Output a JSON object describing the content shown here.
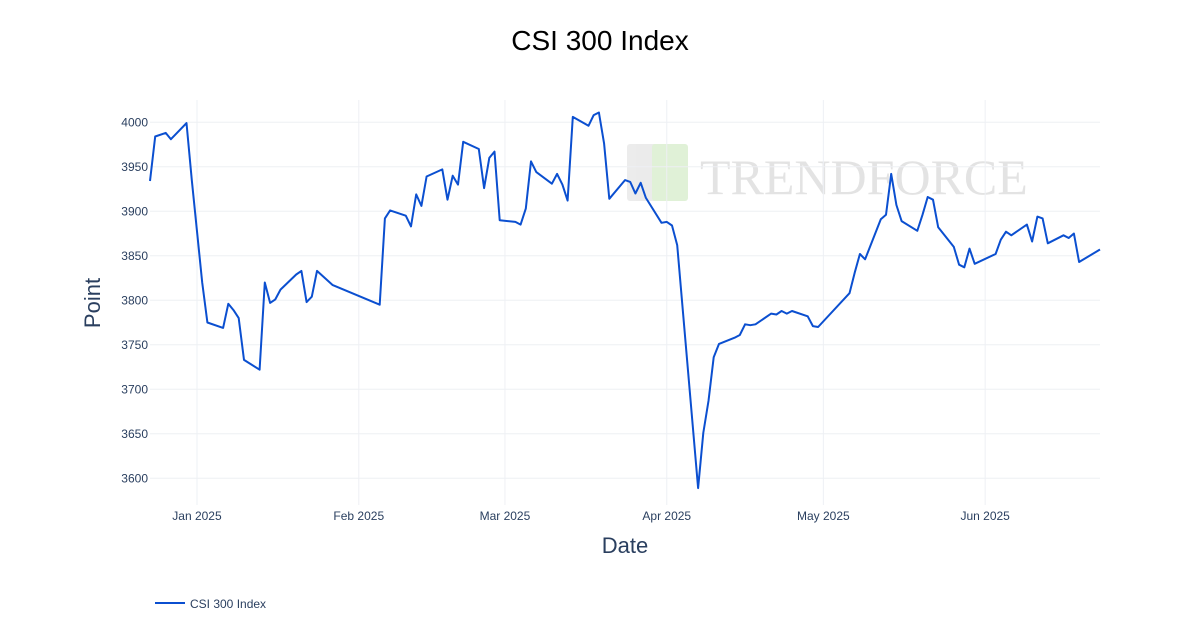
{
  "chart_data": {
    "type": "line",
    "title": "CSI 300 Index",
    "xlabel": "Date",
    "ylabel": "Point",
    "xlim": [
      "2024-12-23",
      "2025-06-23"
    ],
    "ylim": [
      3570,
      4025
    ],
    "grid": true,
    "legend_position": "bottom-left",
    "colors": {
      "title": "#1e8a4a",
      "line": "#0b4fd0",
      "grid": "#eef0f4"
    },
    "x_ticks": [
      {
        "date": "2025-01-01",
        "label": "Jan 2025"
      },
      {
        "date": "2025-02-01",
        "label": "Feb 2025"
      },
      {
        "date": "2025-03-01",
        "label": "Mar 2025"
      },
      {
        "date": "2025-04-01",
        "label": "Apr 2025"
      },
      {
        "date": "2025-05-01",
        "label": "May 2025"
      },
      {
        "date": "2025-06-01",
        "label": "Jun 2025"
      }
    ],
    "y_ticks": [
      3600,
      3650,
      3700,
      3750,
      3800,
      3850,
      3900,
      3950,
      4000
    ],
    "series": [
      {
        "name": "CSI 300 Index",
        "color": "#0b4fd0",
        "points": [
          [
            "2024-12-23",
            3934
          ],
          [
            "2024-12-24",
            3984
          ],
          [
            "2024-12-26",
            3988
          ],
          [
            "2024-12-27",
            3981
          ],
          [
            "2024-12-30",
            3999
          ],
          [
            "2024-12-31",
            3935
          ],
          [
            "2025-01-02",
            3820
          ],
          [
            "2025-01-03",
            3775
          ],
          [
            "2025-01-06",
            3769
          ],
          [
            "2025-01-07",
            3796
          ],
          [
            "2025-01-08",
            3789
          ],
          [
            "2025-01-09",
            3780
          ],
          [
            "2025-01-10",
            3733
          ],
          [
            "2025-01-13",
            3722
          ],
          [
            "2025-01-14",
            3820
          ],
          [
            "2025-01-15",
            3797
          ],
          [
            "2025-01-16",
            3801
          ],
          [
            "2025-01-17",
            3812
          ],
          [
            "2025-01-20",
            3829
          ],
          [
            "2025-01-21",
            3833
          ],
          [
            "2025-01-22",
            3798
          ],
          [
            "2025-01-23",
            3804
          ],
          [
            "2025-01-24",
            3833
          ],
          [
            "2025-01-27",
            3817
          ],
          [
            "2025-02-05",
            3795
          ],
          [
            "2025-02-06",
            3892
          ],
          [
            "2025-02-07",
            3901
          ],
          [
            "2025-02-10",
            3895
          ],
          [
            "2025-02-11",
            3883
          ],
          [
            "2025-02-12",
            3919
          ],
          [
            "2025-02-13",
            3906
          ],
          [
            "2025-02-14",
            3939
          ],
          [
            "2025-02-17",
            3947
          ],
          [
            "2025-02-18",
            3913
          ],
          [
            "2025-02-19",
            3940
          ],
          [
            "2025-02-20",
            3930
          ],
          [
            "2025-02-21",
            3978
          ],
          [
            "2025-02-24",
            3970
          ],
          [
            "2025-02-25",
            3926
          ],
          [
            "2025-02-26",
            3960
          ],
          [
            "2025-02-27",
            3967
          ],
          [
            "2025-02-28",
            3890
          ],
          [
            "2025-03-03",
            3888
          ],
          [
            "2025-03-04",
            3885
          ],
          [
            "2025-03-05",
            3903
          ],
          [
            "2025-03-06",
            3956
          ],
          [
            "2025-03-07",
            3944
          ],
          [
            "2025-03-10",
            3931
          ],
          [
            "2025-03-11",
            3942
          ],
          [
            "2025-03-12",
            3930
          ],
          [
            "2025-03-13",
            3912
          ],
          [
            "2025-03-14",
            4006
          ],
          [
            "2025-03-17",
            3996
          ],
          [
            "2025-03-18",
            4008
          ],
          [
            "2025-03-19",
            4011
          ],
          [
            "2025-03-20",
            3976
          ],
          [
            "2025-03-21",
            3914
          ],
          [
            "2025-03-24",
            3935
          ],
          [
            "2025-03-25",
            3933
          ],
          [
            "2025-03-26",
            3920
          ],
          [
            "2025-03-27",
            3932
          ],
          [
            "2025-03-28",
            3915
          ],
          [
            "2025-03-31",
            3887
          ],
          [
            "2025-04-01",
            3888
          ],
          [
            "2025-04-02",
            3884
          ],
          [
            "2025-04-03",
            3862
          ],
          [
            "2025-04-07",
            3589
          ],
          [
            "2025-04-08",
            3651
          ],
          [
            "2025-04-09",
            3687
          ],
          [
            "2025-04-10",
            3736
          ],
          [
            "2025-04-11",
            3751
          ],
          [
            "2025-04-14",
            3758
          ],
          [
            "2025-04-15",
            3761
          ],
          [
            "2025-04-16",
            3773
          ],
          [
            "2025-04-17",
            3772
          ],
          [
            "2025-04-18",
            3773
          ],
          [
            "2025-04-21",
            3785
          ],
          [
            "2025-04-22",
            3784
          ],
          [
            "2025-04-23",
            3788
          ],
          [
            "2025-04-24",
            3785
          ],
          [
            "2025-04-25",
            3788
          ],
          [
            "2025-04-28",
            3782
          ],
          [
            "2025-04-29",
            3771
          ],
          [
            "2025-04-30",
            3770
          ],
          [
            "2025-05-06",
            3808
          ],
          [
            "2025-05-07",
            3831
          ],
          [
            "2025-05-08",
            3852
          ],
          [
            "2025-05-09",
            3846
          ],
          [
            "2025-05-12",
            3891
          ],
          [
            "2025-05-13",
            3896
          ],
          [
            "2025-05-14",
            3942
          ],
          [
            "2025-05-15",
            3907
          ],
          [
            "2025-05-16",
            3889
          ],
          [
            "2025-05-19",
            3878
          ],
          [
            "2025-05-20",
            3896
          ],
          [
            "2025-05-21",
            3916
          ],
          [
            "2025-05-22",
            3913
          ],
          [
            "2025-05-23",
            3882
          ],
          [
            "2025-05-26",
            3860
          ],
          [
            "2025-05-27",
            3840
          ],
          [
            "2025-05-28",
            3837
          ],
          [
            "2025-05-29",
            3858
          ],
          [
            "2025-05-30",
            3841
          ],
          [
            "2025-06-03",
            3852
          ],
          [
            "2025-06-04",
            3868
          ],
          [
            "2025-06-05",
            3877
          ],
          [
            "2025-06-06",
            3873
          ],
          [
            "2025-06-09",
            3885
          ],
          [
            "2025-06-10",
            3866
          ],
          [
            "2025-06-11",
            3894
          ],
          [
            "2025-06-12",
            3892
          ],
          [
            "2025-06-13",
            3864
          ],
          [
            "2025-06-16",
            3873
          ],
          [
            "2025-06-17",
            3870
          ],
          [
            "2025-06-18",
            3875
          ],
          [
            "2025-06-19",
            3843
          ],
          [
            "2025-06-23",
            3857
          ]
        ]
      }
    ]
  },
  "watermark": {
    "text": "TRENDFORCE",
    "colors": [
      "#cccccc",
      "#b7e2a6"
    ]
  }
}
